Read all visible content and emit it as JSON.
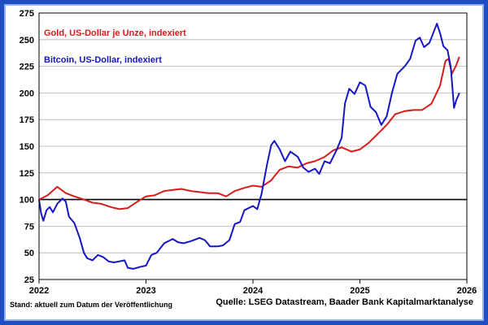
{
  "colors": {
    "gold": "#d81b1b",
    "bitcoin": "#1515c8",
    "baseline": "#000000",
    "grid": "#b0b0b0",
    "frame": "#1f4fbf"
  },
  "footer": {
    "left_note": "Stand: aktuell zum Datum der Veröffentlichung",
    "source": "Quelle: LSEG Datastream, Baader Bank Kapitalmarktanalyse"
  },
  "chart_data": {
    "type": "line",
    "title": "",
    "xlabel": "",
    "ylabel": "",
    "xlim": [
      2022.0,
      2026.0
    ],
    "ylim": [
      25,
      275
    ],
    "x_ticks": [
      "2022",
      "2023",
      "2024",
      "2025",
      "2026"
    ],
    "y_ticks": [
      "25",
      "50",
      "75",
      "100",
      "125",
      "150",
      "175",
      "200",
      "225",
      "250",
      "275"
    ],
    "grid": "horizontal",
    "legend_placement": "top-left",
    "reference_line": 100,
    "series": [
      {
        "name": "Gold, US-Dollar je Unze, indexiert",
        "color_key": "gold",
        "points": [
          [
            2022.0,
            100
          ],
          [
            2022.08,
            104
          ],
          [
            2022.17,
            112
          ],
          [
            2022.25,
            106
          ],
          [
            2022.33,
            103
          ],
          [
            2022.42,
            100
          ],
          [
            2022.5,
            97
          ],
          [
            2022.58,
            96
          ],
          [
            2022.67,
            93
          ],
          [
            2022.75,
            91
          ],
          [
            2022.83,
            92
          ],
          [
            2022.92,
            98
          ],
          [
            2023.0,
            103
          ],
          [
            2023.08,
            104
          ],
          [
            2023.17,
            108
          ],
          [
            2023.25,
            109
          ],
          [
            2023.33,
            110
          ],
          [
            2023.42,
            108
          ],
          [
            2023.5,
            107
          ],
          [
            2023.58,
            106
          ],
          [
            2023.67,
            106
          ],
          [
            2023.75,
            103
          ],
          [
            2023.83,
            108
          ],
          [
            2023.92,
            111
          ],
          [
            2024.0,
            113
          ],
          [
            2024.08,
            112
          ],
          [
            2024.17,
            118
          ],
          [
            2024.25,
            128
          ],
          [
            2024.33,
            131
          ],
          [
            2024.42,
            130
          ],
          [
            2024.5,
            134
          ],
          [
            2024.58,
            136
          ],
          [
            2024.67,
            140
          ],
          [
            2024.75,
            146
          ],
          [
            2024.83,
            149
          ],
          [
            2024.92,
            145
          ],
          [
            2025.0,
            147
          ],
          [
            2025.08,
            153
          ],
          [
            2025.17,
            162
          ],
          [
            2025.25,
            170
          ],
          [
            2025.33,
            180
          ],
          [
            2025.42,
            183
          ],
          [
            2025.5,
            184
          ],
          [
            2025.58,
            184
          ],
          [
            2025.67,
            190
          ],
          [
            2025.75,
            207
          ],
          [
            2025.8,
            230
          ],
          [
            2025.83,
            232
          ],
          [
            2025.86,
            218
          ],
          [
            2025.9,
            226
          ],
          [
            2025.93,
            234
          ]
        ]
      },
      {
        "name": "Bitcoin, US-Dollar, indexiert",
        "color_key": "bitcoin",
        "points": [
          [
            2022.0,
            100
          ],
          [
            2022.02,
            87
          ],
          [
            2022.04,
            80
          ],
          [
            2022.07,
            90
          ],
          [
            2022.1,
            93
          ],
          [
            2022.13,
            88
          ],
          [
            2022.17,
            96
          ],
          [
            2022.22,
            101
          ],
          [
            2022.25,
            98
          ],
          [
            2022.28,
            84
          ],
          [
            2022.33,
            78
          ],
          [
            2022.38,
            64
          ],
          [
            2022.42,
            50
          ],
          [
            2022.45,
            45
          ],
          [
            2022.5,
            43
          ],
          [
            2022.55,
            48
          ],
          [
            2022.6,
            46
          ],
          [
            2022.65,
            42
          ],
          [
            2022.7,
            41
          ],
          [
            2022.75,
            42
          ],
          [
            2022.8,
            43
          ],
          [
            2022.83,
            36
          ],
          [
            2022.88,
            35
          ],
          [
            2022.95,
            37
          ],
          [
            2023.0,
            38
          ],
          [
            2023.05,
            48
          ],
          [
            2023.1,
            50
          ],
          [
            2023.17,
            59
          ],
          [
            2023.25,
            63
          ],
          [
            2023.3,
            60
          ],
          [
            2023.35,
            59
          ],
          [
            2023.42,
            61
          ],
          [
            2023.5,
            64
          ],
          [
            2023.55,
            62
          ],
          [
            2023.6,
            56
          ],
          [
            2023.67,
            56
          ],
          [
            2023.72,
            57
          ],
          [
            2023.78,
            62
          ],
          [
            2023.83,
            77
          ],
          [
            2023.88,
            79
          ],
          [
            2023.92,
            90
          ],
          [
            2024.0,
            94
          ],
          [
            2024.04,
            91
          ],
          [
            2024.08,
            105
          ],
          [
            2024.13,
            132
          ],
          [
            2024.17,
            151
          ],
          [
            2024.2,
            155
          ],
          [
            2024.25,
            147
          ],
          [
            2024.3,
            136
          ],
          [
            2024.35,
            145
          ],
          [
            2024.42,
            140
          ],
          [
            2024.47,
            130
          ],
          [
            2024.52,
            126
          ],
          [
            2024.58,
            129
          ],
          [
            2024.62,
            124
          ],
          [
            2024.67,
            136
          ],
          [
            2024.72,
            134
          ],
          [
            2024.78,
            146
          ],
          [
            2024.83,
            158
          ],
          [
            2024.86,
            190
          ],
          [
            2024.9,
            204
          ],
          [
            2024.95,
            199
          ],
          [
            2025.0,
            210
          ],
          [
            2025.05,
            207
          ],
          [
            2025.1,
            187
          ],
          [
            2025.15,
            182
          ],
          [
            2025.2,
            170
          ],
          [
            2025.25,
            178
          ],
          [
            2025.3,
            200
          ],
          [
            2025.35,
            218
          ],
          [
            2025.42,
            225
          ],
          [
            2025.47,
            232
          ],
          [
            2025.52,
            249
          ],
          [
            2025.56,
            252
          ],
          [
            2025.6,
            243
          ],
          [
            2025.65,
            247
          ],
          [
            2025.7,
            260
          ],
          [
            2025.72,
            265
          ],
          [
            2025.75,
            256
          ],
          [
            2025.78,
            244
          ],
          [
            2025.82,
            240
          ],
          [
            2025.85,
            224
          ],
          [
            2025.88,
            186
          ],
          [
            2025.9,
            193
          ],
          [
            2025.93,
            200
          ]
        ]
      }
    ]
  }
}
